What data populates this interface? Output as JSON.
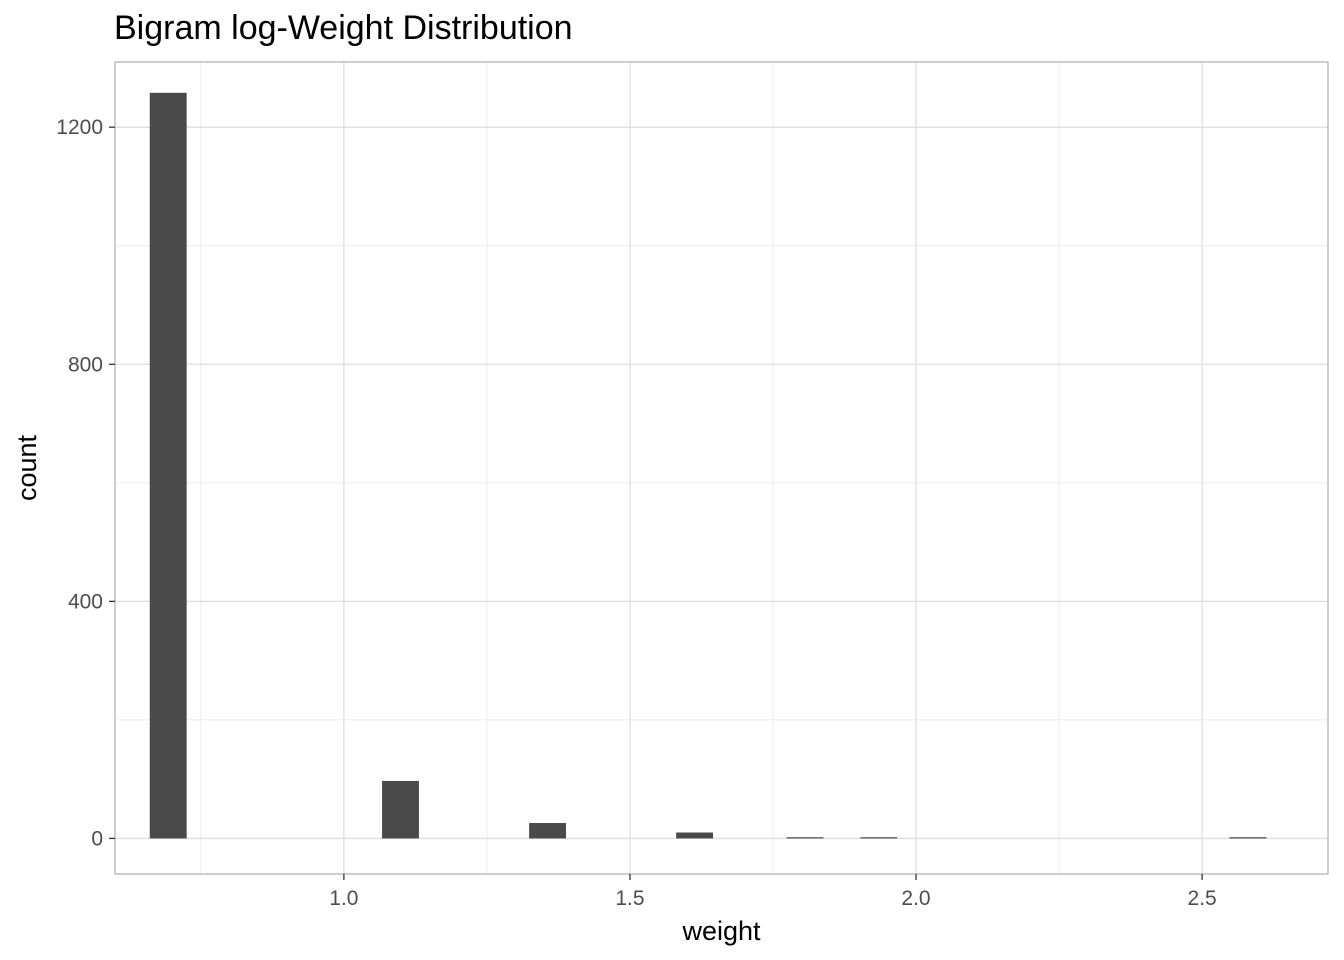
{
  "chart_data": {
    "type": "bar",
    "title": "Bigram log-Weight Distribution",
    "xlabel": "weight",
    "ylabel": "count",
    "xlim": [
      0.6,
      2.72
    ],
    "ylim": [
      -60,
      1310
    ],
    "x_ticks": [
      1.0,
      1.5,
      2.0,
      2.5
    ],
    "x_tick_labels": [
      "1.0",
      "1.5",
      "2.0",
      "2.5"
    ],
    "x_minor_ticks": [
      0.75,
      1.25,
      1.75,
      2.25
    ],
    "y_ticks": [
      0,
      400,
      800,
      1200
    ],
    "y_tick_labels": [
      "0",
      "400",
      "800",
      "1200"
    ],
    "y_minor_ticks": [
      200,
      600,
      1000
    ],
    "bin_width": 0.0645,
    "bins": [
      {
        "x": 0.693,
        "count": 1258
      },
      {
        "x": 1.099,
        "count": 97
      },
      {
        "x": 1.356,
        "count": 26
      },
      {
        "x": 1.613,
        "count": 10
      },
      {
        "x": 1.806,
        "count": 2
      },
      {
        "x": 1.935,
        "count": 2
      },
      {
        "x": 2.58,
        "count": 1
      }
    ],
    "grid": true,
    "bar_color": "#4a4a4a",
    "grid_color": "#dedede",
    "panel_border_color": "#b3b3b3"
  }
}
